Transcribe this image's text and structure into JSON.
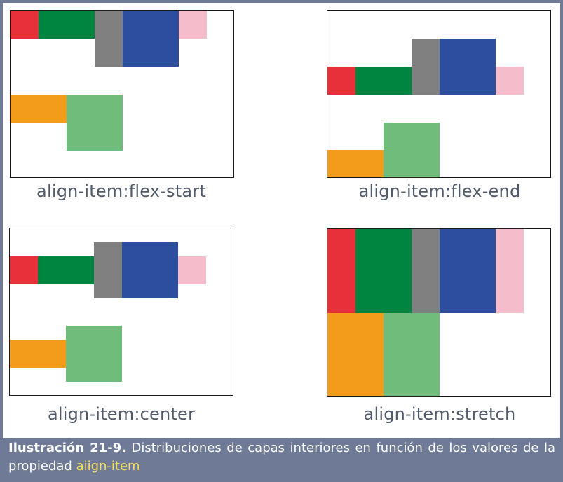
{
  "colors": {
    "red": "#e8303a",
    "dark_green": "#008540",
    "gray": "#808080",
    "blue": "#2d4e9f",
    "pink": "#f5bccb",
    "orange": "#f39c1c",
    "light_green": "#70bd7b",
    "frame": "#6e7a96",
    "caption_highlight": "#f3e05a"
  },
  "panels": [
    {
      "label": "align-item:flex-start"
    },
    {
      "label": "align-item:flex-end"
    },
    {
      "label": "align-item:center"
    },
    {
      "label": "align-item:stretch"
    }
  ],
  "caption": {
    "prefix": "Ilustración 21-9.",
    "text": " Distribuciones de capas interiores en función de los valores de la propiedad ",
    "highlight": "aiign-item"
  }
}
